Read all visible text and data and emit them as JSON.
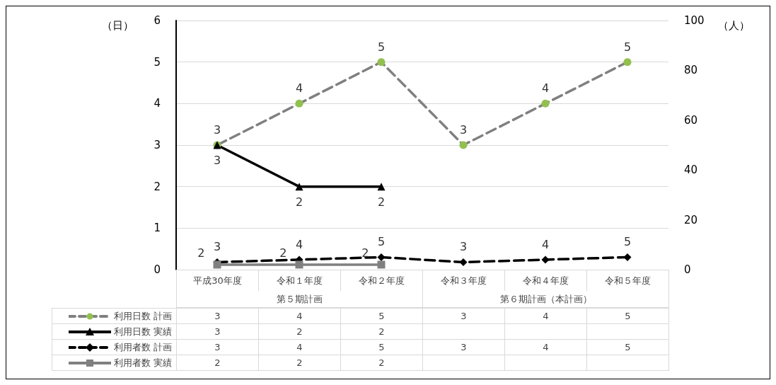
{
  "chart_data": [
    {
      "type": "line",
      "categories": [
        "平成30年度",
        "令和１年度",
        "令和２年度",
        "令和３年度",
        "令和４年度",
        "令和５年度"
      ],
      "annotations": [
        "第５期計画",
        "第６期計画（本計画）"
      ],
      "ylabel": "（日）",
      "y2label": "（人）",
      "ylim": [
        0,
        6
      ],
      "yticks": [
        0,
        1,
        2,
        3,
        4,
        5,
        6
      ],
      "y2lim": [
        0,
        100
      ],
      "y2ticks": [
        0,
        20,
        40,
        60,
        80,
        100
      ],
      "grid": "y",
      "legend": "bottom",
      "series": [
        {
          "name": "利用日数 計画",
          "color": "#808080",
          "colors": [
            "#92c04f",
            "#92c04f",
            "#92c04f",
            "#92c04f",
            "#92c04f",
            "#92c04f"
          ],
          "marker": "circle",
          "line_style": "dashed",
          "values": [
            3,
            4,
            5,
            3,
            4,
            5
          ],
          "value_labels": [
            "3",
            "4",
            "5",
            "3",
            "4",
            "5"
          ]
        },
        {
          "name": "利用日数 実績",
          "color": "#000000",
          "marker": "triangle",
          "line_style": "solid",
          "values": [
            3,
            2,
            2,
            null,
            null,
            null
          ],
          "value_labels": [
            "3",
            "2",
            "2",
            null,
            null,
            null
          ]
        },
        {
          "name": "利用者数 計画",
          "color": "#000000",
          "marker": "diamond",
          "line_style": "dashed",
          "axis": "y2",
          "values": [
            3,
            4,
            5,
            3,
            4,
            5
          ],
          "value_labels": [
            "3",
            "4",
            "5",
            "3",
            "4",
            "5"
          ]
        },
        {
          "name": "利用者数 実績",
          "color": "#808080",
          "marker": "square",
          "line_style": "solid",
          "axis": "y2",
          "values": [
            2,
            2,
            2,
            null,
            null,
            null
          ],
          "value_labels": [
            "2",
            "2",
            "2",
            null,
            null,
            null
          ]
        }
      ]
    },
    {
      "type": "other",
      "cell_labels": [
        [
          "3",
          "4",
          "5",
          "3",
          "4",
          "5"
        ],
        [
          "3",
          "2",
          "2",
          null,
          null,
          null
        ],
        [
          "3",
          "4",
          "5",
          "3",
          "4",
          "5"
        ],
        [
          "2",
          "2",
          "2",
          null,
          null,
          null
        ]
      ]
    }
  ]
}
